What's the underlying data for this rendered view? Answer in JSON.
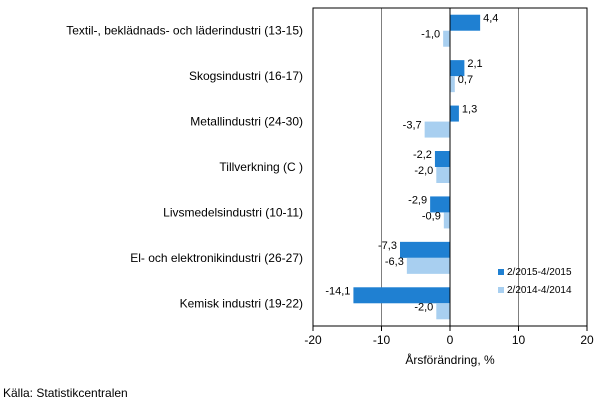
{
  "chart_data": {
    "type": "bar",
    "orientation": "horizontal",
    "categories": [
      "Textil-, beklädnads- och läderindustri (13-15)",
      "Skogsindustri (16-17)",
      "Metallindustri (24-30)",
      "Tillverkning (C )",
      "Livsmedelsindustri (10-11)",
      "El- och elektronikindustri (26-27)",
      "Kemisk industri (19-22)"
    ],
    "series": [
      {
        "name": "2/2015-4/2015",
        "color": "#1f80d2",
        "values": [
          4.4,
          2.1,
          1.3,
          -2.2,
          -2.9,
          -7.3,
          -14.1
        ],
        "labels": [
          "4,4",
          "2,1",
          "1,3",
          "-2,2",
          "-2,9",
          "-7,3",
          "-14,1"
        ]
      },
      {
        "name": "2/2014-4/2014",
        "color": "#a8cff0",
        "values": [
          -1.0,
          0.7,
          -3.7,
          -2.0,
          -0.9,
          -6.3,
          -2.0
        ],
        "labels": [
          "-1,0",
          "0,7",
          "-3,7",
          "-2,0",
          "-0,9",
          "-6,3",
          "-2,0"
        ]
      }
    ],
    "xlim": [
      -20,
      20
    ],
    "xticks": [
      -20,
      -10,
      0,
      10,
      20
    ],
    "xtick_labels": [
      "-20",
      "-10",
      "0",
      "10",
      "20"
    ],
    "xlabel": "Årsförändring, %",
    "grid": "vertical",
    "legend_position": "bottom-right"
  },
  "source": "Källa: Statistikcentralen"
}
